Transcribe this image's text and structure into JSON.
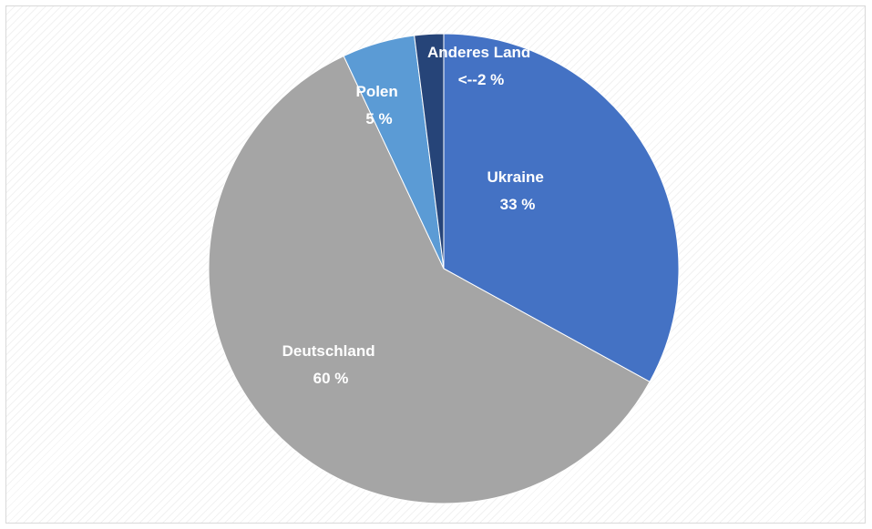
{
  "chart_data": {
    "type": "pie",
    "slices": [
      {
        "label": "Ukraine",
        "value": 33,
        "value_label": "33 %",
        "color": "#4472C4"
      },
      {
        "label": "Deutschland",
        "value": 60,
        "value_label": "60 %",
        "color": "#A5A5A5"
      },
      {
        "label": "Polen",
        "value": 5,
        "value_label": "5 %",
        "color": "#5B9BD5"
      },
      {
        "label": "Anderes Land",
        "value": 2,
        "value_label": "<--2 %",
        "color": "#264478"
      }
    ],
    "start_angle_deg": 0,
    "direction": "clockwise",
    "legend": "none"
  }
}
